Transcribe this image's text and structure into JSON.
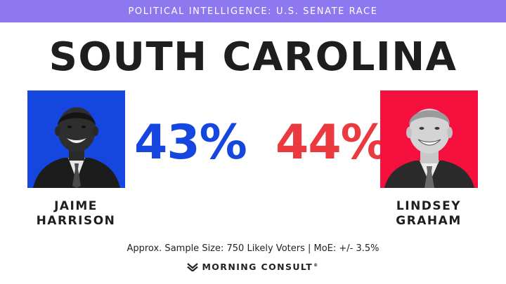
{
  "banner": {
    "text": "POLITICAL INTELLIGENCE: U.S. SENATE RACE",
    "color": "#8e78f0"
  },
  "state": "SOUTH CAROLINA",
  "candidates": [
    {
      "first_name": "JAIME",
      "last_name": "HARRISON",
      "percent": "43%",
      "color": "#1646e0",
      "photo_background": "#1646e0"
    },
    {
      "first_name": "LINDSEY",
      "last_name": "GRAHAM",
      "percent": "44%",
      "color": "#ea3a3f",
      "photo_background": "#f5103d"
    }
  ],
  "footer": {
    "sample_note": "Approx. Sample Size: 750 Likely Voters | MoE: +/- 3.5%",
    "brand": "MORNING CONSULT",
    "brand_mark": "®",
    "brand_icon": "morning-consult-logo-icon"
  }
}
